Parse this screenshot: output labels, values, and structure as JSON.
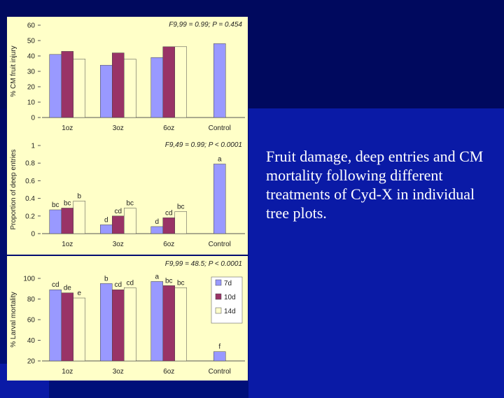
{
  "caption": "Fruit damage, deep entries and CM mortality following different treatments of Cyd-X in individual tree plots.",
  "colors": {
    "7d": "#9999ff",
    "10d": "#993366",
    "14d": "#ffffcc",
    "panel_bg": "#ffffc8",
    "slide_bg": "#000a70"
  },
  "chart_data": [
    {
      "type": "bar",
      "categories": [
        "1oz",
        "3oz",
        "6oz",
        "Control"
      ],
      "ylabel": "% CM fruit injury",
      "ylim": [
        0,
        60
      ],
      "yticks": [
        0,
        10,
        20,
        30,
        40,
        50,
        60
      ],
      "ytick_labels": [
        "0",
        "10",
        "20",
        "30",
        "40",
        "50",
        "60"
      ],
      "annotation": "F9,99 = 0.99; P = 0.454",
      "series": [
        {
          "key": "7d",
          "values": [
            41,
            34,
            39,
            48
          ]
        },
        {
          "key": "10d",
          "values": [
            43,
            42,
            46,
            null
          ]
        },
        {
          "key": "14d",
          "values": [
            38,
            38,
            46,
            null
          ]
        }
      ],
      "labels": null
    },
    {
      "type": "bar",
      "categories": [
        "1oz",
        "3oz",
        "6oz",
        "Control"
      ],
      "ylabel": "Proportion of deep entries",
      "ylim": [
        0,
        1
      ],
      "yticks": [
        0,
        0.2,
        0.4,
        0.6,
        0.8,
        1
      ],
      "ytick_labels": [
        "0",
        "0.2",
        "0.4",
        "0.6",
        "0.8",
        "1"
      ],
      "annotation": "F9,49 = 0.99; P < 0.0001",
      "series": [
        {
          "key": "7d",
          "values": [
            0.27,
            0.1,
            0.08,
            0.79
          ]
        },
        {
          "key": "10d",
          "values": [
            0.29,
            0.2,
            0.18,
            null
          ]
        },
        {
          "key": "14d",
          "values": [
            0.37,
            0.29,
            0.25,
            null
          ]
        }
      ],
      "labels": [
        [
          "bc",
          "d",
          "d",
          "a"
        ],
        [
          "bc",
          "cd",
          "cd",
          ""
        ],
        [
          "b",
          "bc",
          "bc",
          ""
        ]
      ]
    },
    {
      "type": "bar",
      "categories": [
        "1oz",
        "3oz",
        "6oz",
        "Control"
      ],
      "ylabel": "% Larval mortality",
      "ylim": [
        20,
        100
      ],
      "yticks": [
        20,
        40,
        60,
        80,
        100
      ],
      "ytick_labels": [
        "20",
        "40",
        "60",
        "80",
        "100"
      ],
      "annotation": "F9,99 = 48.5; P < 0.0001",
      "legend": [
        {
          "key": "7d",
          "label": "7d"
        },
        {
          "key": "10d",
          "label": "10d"
        },
        {
          "key": "14d",
          "label": "14d"
        }
      ],
      "legend_position": "top-right",
      "series": [
        {
          "key": "7d",
          "values": [
            89,
            95,
            97,
            29
          ]
        },
        {
          "key": "10d",
          "values": [
            86,
            89,
            93,
            null
          ]
        },
        {
          "key": "14d",
          "values": [
            81,
            91,
            91,
            null
          ]
        }
      ],
      "labels": [
        [
          "cd",
          "b",
          "a",
          "f"
        ],
        [
          "de",
          "cd",
          "bc",
          ""
        ],
        [
          "e",
          "cd",
          "bc",
          ""
        ]
      ]
    }
  ]
}
